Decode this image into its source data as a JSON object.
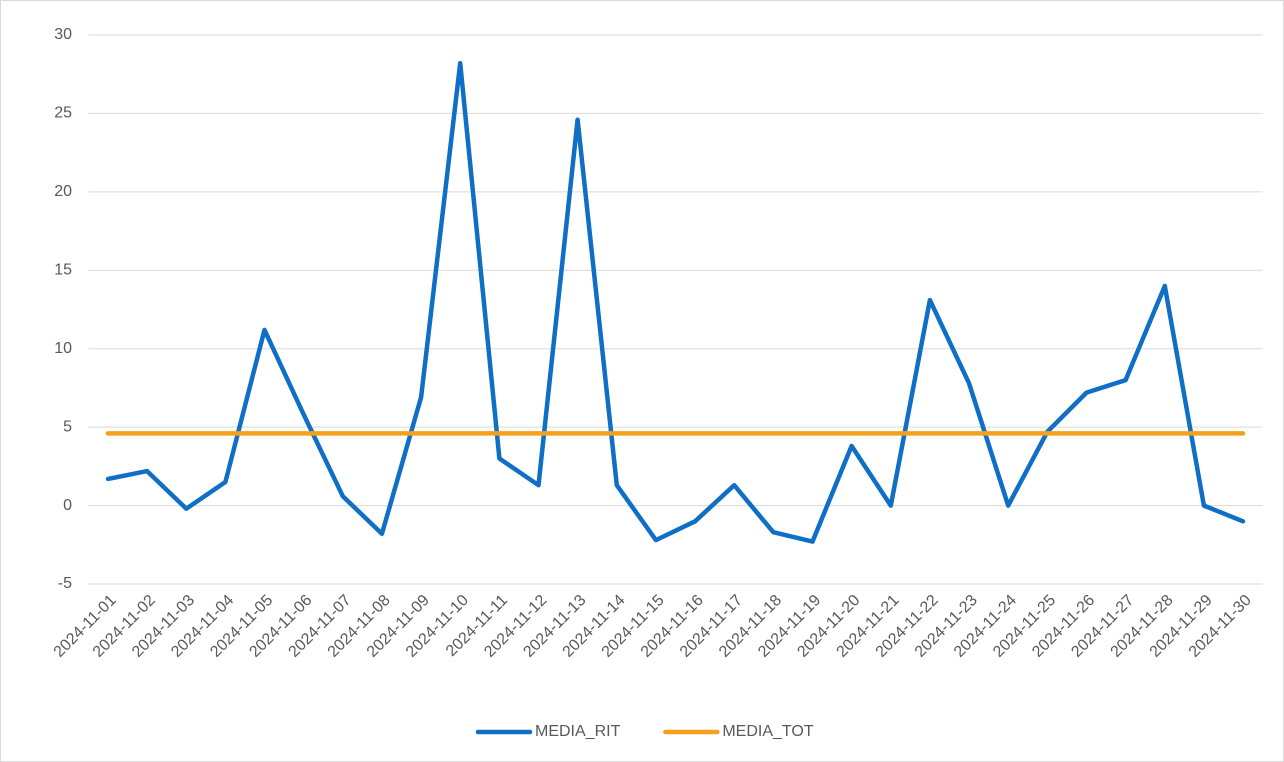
{
  "chart_data": {
    "type": "line",
    "categories": [
      "2024-11-01",
      "2024-11-02",
      "2024-11-03",
      "2024-11-04",
      "2024-11-05",
      "2024-11-06",
      "2024-11-07",
      "2024-11-08",
      "2024-11-09",
      "2024-11-10",
      "2024-11-11",
      "2024-11-12",
      "2024-11-13",
      "2024-11-14",
      "2024-11-15",
      "2024-11-16",
      "2024-11-17",
      "2024-11-18",
      "2024-11-19",
      "2024-11-20",
      "2024-11-21",
      "2024-11-22",
      "2024-11-23",
      "2024-11-24",
      "2024-11-25",
      "2024-11-26",
      "2024-11-27",
      "2024-11-28",
      "2024-11-29",
      "2024-11-30"
    ],
    "series": [
      {
        "name": "MEDIA_RIT",
        "color": "#0f6fc6",
        "values": [
          1.7,
          2.2,
          -0.2,
          1.5,
          11.2,
          5.8,
          0.6,
          -1.8,
          6.9,
          28.2,
          3.0,
          1.3,
          24.6,
          1.3,
          -2.2,
          -1.0,
          1.3,
          -1.7,
          -2.3,
          3.8,
          0,
          13.1,
          7.8,
          0,
          4.7,
          7.2,
          8.0,
          14.0,
          0,
          -1.0
        ]
      },
      {
        "name": "MEDIA_TOT",
        "color": "#f5a01a",
        "values": [
          4.6,
          4.6,
          4.6,
          4.6,
          4.6,
          4.6,
          4.6,
          4.6,
          4.6,
          4.6,
          4.6,
          4.6,
          4.6,
          4.6,
          4.6,
          4.6,
          4.6,
          4.6,
          4.6,
          4.6,
          4.6,
          4.6,
          4.6,
          4.6,
          4.6,
          4.6,
          4.6,
          4.6,
          4.6,
          4.6
        ]
      }
    ],
    "ylim": [
      -5,
      30
    ],
    "yticks": [
      -5,
      0,
      5,
      10,
      15,
      20,
      25,
      30
    ],
    "grid": true,
    "legend": "bottom"
  }
}
